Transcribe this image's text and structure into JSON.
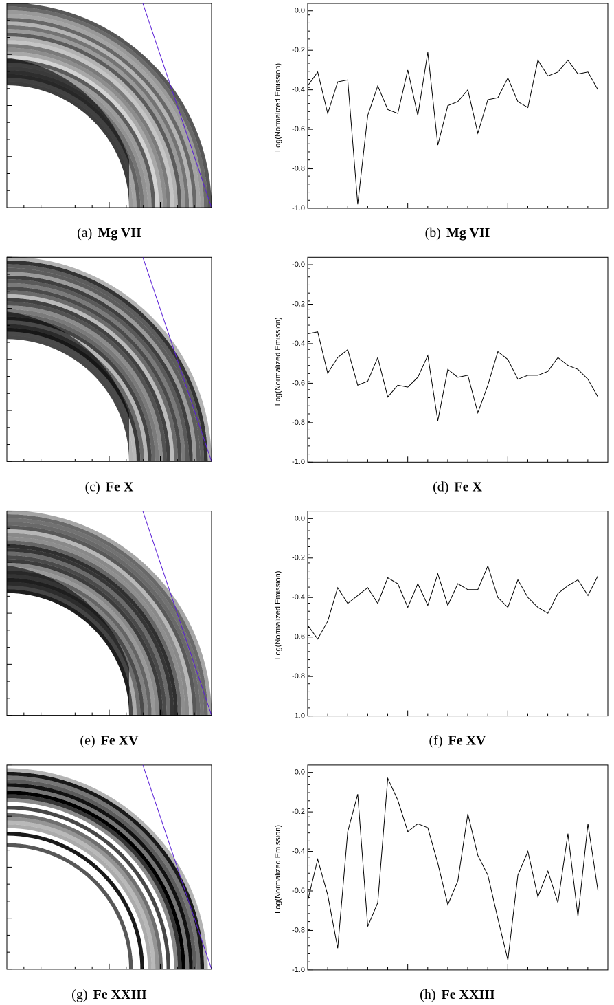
{
  "panels": [
    {
      "label": "(a)",
      "ion": "Mg VII"
    },
    {
      "label": "(c)",
      "ion": "Fe X"
    },
    {
      "label": "(e)",
      "ion": "Fe XV"
    },
    {
      "label": "(g)",
      "ion": "Fe XXIII"
    }
  ],
  "chart_data": [
    {
      "type": "line",
      "label": "(b)",
      "title": "Mg VII",
      "y_label": "Log(Normalized Emission)",
      "x": [
        0,
        1,
        2,
        3,
        4,
        5,
        6,
        7,
        8,
        9,
        10,
        11,
        12,
        13,
        14,
        15,
        16,
        17,
        18,
        19,
        20,
        21,
        22,
        23,
        24,
        25,
        26,
        27,
        28,
        29
      ],
      "values": [
        -0.38,
        -0.31,
        -0.52,
        -0.36,
        -0.35,
        -0.98,
        -0.53,
        -0.38,
        -0.5,
        -0.52,
        -0.3,
        -0.53,
        -0.21,
        -0.68,
        -0.48,
        -0.46,
        -0.4,
        -0.62,
        -0.45,
        -0.44,
        -0.34,
        -0.46,
        -0.49,
        -0.25,
        -0.33,
        -0.31,
        -0.25,
        -0.32,
        -0.31,
        -0.4
      ],
      "color": "#000000",
      "xlim": [
        0,
        29.3
      ],
      "ylim": [
        -1.0,
        0.02
      ],
      "yticks": [
        {
          "value": -1.0,
          "label": "-1.0"
        },
        -0.8,
        -0.6,
        -0.4,
        -0.2,
        {
          "value": 0,
          "label": "0.0"
        }
      ]
    },
    {
      "type": "line",
      "label": "(d)",
      "title": "Fe X",
      "y_label": "Log(Normalized Emission)",
      "x": [
        0,
        1,
        2,
        3,
        4,
        5,
        6,
        7,
        8,
        9,
        10,
        11,
        12,
        13,
        14,
        15,
        16,
        17,
        18,
        19,
        20,
        21,
        22,
        23,
        24,
        25,
        26,
        27,
        28,
        29
      ],
      "values": [
        -0.35,
        -0.34,
        -0.55,
        -0.47,
        -0.43,
        -0.61,
        -0.59,
        -0.47,
        -0.67,
        -0.61,
        -0.62,
        -0.57,
        -0.46,
        -0.79,
        -0.53,
        -0.57,
        -0.56,
        -0.75,
        -0.61,
        -0.44,
        -0.48,
        -0.58,
        -0.56,
        -0.56,
        -0.54,
        -0.47,
        -0.51,
        -0.53,
        -0.58,
        -0.67
      ],
      "color": "#000000",
      "xlim": [
        0,
        29.3
      ],
      "ylim": [
        -1.0,
        0.02
      ],
      "yticks": [
        {
          "value": -1.0,
          "label": "-1.0"
        },
        -0.8,
        -0.6,
        -0.4,
        -0.2,
        {
          "value": 0,
          "label": "-0.0"
        }
      ]
    },
    {
      "type": "line",
      "label": "(f)",
      "title": "Fe XV",
      "y_label": "Log(Normalized Emission)",
      "x": [
        0,
        1,
        2,
        3,
        4,
        5,
        6,
        7,
        8,
        9,
        10,
        11,
        12,
        13,
        14,
        15,
        16,
        17,
        18,
        19,
        20,
        21,
        22,
        23,
        24,
        25,
        26,
        27,
        28,
        29
      ],
      "values": [
        -0.54,
        -0.61,
        -0.52,
        -0.35,
        -0.43,
        -0.39,
        -0.35,
        -0.43,
        -0.3,
        -0.33,
        -0.45,
        -0.33,
        -0.44,
        -0.28,
        -0.44,
        -0.33,
        -0.36,
        -0.36,
        -0.24,
        -0.4,
        -0.45,
        -0.31,
        -0.4,
        -0.45,
        -0.48,
        -0.38,
        -0.34,
        -0.31,
        -0.39,
        -0.29
      ],
      "color": "#000000",
      "xlim": [
        0,
        29.3
      ],
      "ylim": [
        -1.0,
        0.02
      ],
      "yticks": [
        {
          "value": -1.0,
          "label": "-1.0"
        },
        -0.8,
        -0.6,
        -0.4,
        -0.2,
        {
          "value": 0,
          "label": "0.0"
        }
      ]
    },
    {
      "type": "line",
      "label": "(h)",
      "title": "Fe XXIII",
      "y_label": "Log(Normalized Emission)",
      "x": [
        0,
        1,
        2,
        3,
        4,
        5,
        6,
        7,
        8,
        9,
        10,
        11,
        12,
        13,
        14,
        15,
        16,
        17,
        18,
        19,
        20,
        21,
        22,
        23,
        24,
        25,
        26,
        27,
        28,
        29
      ],
      "values": [
        -0.65,
        -0.44,
        -0.62,
        -0.89,
        -0.3,
        -0.11,
        -0.78,
        -0.66,
        -0.03,
        -0.14,
        -0.3,
        -0.26,
        -0.28,
        -0.46,
        -0.67,
        -0.55,
        -0.21,
        -0.42,
        -0.52,
        -0.74,
        -0.95,
        -0.52,
        -0.4,
        -0.63,
        -0.5,
        -0.66,
        -0.31,
        -0.73,
        -0.26,
        -0.6
      ],
      "color": "#000000",
      "xlim": [
        0,
        29.3
      ],
      "ylim": [
        -1.0,
        0.02
      ],
      "yticks": [
        {
          "value": -1.0,
          "label": "-1.0"
        },
        -0.8,
        -0.6,
        -0.4,
        -0.2,
        {
          "value": 0,
          "label": "0.0"
        }
      ]
    }
  ]
}
